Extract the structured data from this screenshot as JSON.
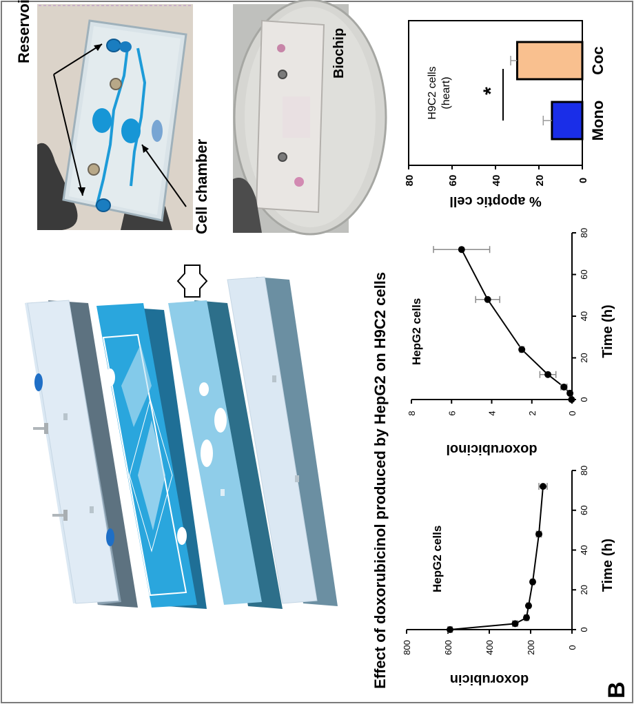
{
  "panel_label": "B",
  "photo_labels": {
    "reservoirs": "Reservoirs",
    "cell_chamber": "Cell chamber",
    "biochip": "Biochip"
  },
  "figure_title": "Effect of doxorubicinol produced by HepG2 on H9C2 cells",
  "chart_data": [
    {
      "type": "line",
      "annotation": "HepG2 cells",
      "xlabel": "Time (h)",
      "ylabel": "doxorubicin",
      "xlim": [
        0,
        80
      ],
      "ylim": [
        0,
        800
      ],
      "x_ticks": [
        "0",
        "20",
        "40",
        "60",
        "80"
      ],
      "y_ticks": [
        "0",
        "200",
        "400",
        "600",
        "800"
      ],
      "x": [
        0,
        3,
        6,
        12,
        24,
        48,
        72
      ],
      "y": [
        590,
        275,
        220,
        210,
        190,
        160,
        140
      ],
      "err": [
        10,
        12,
        10,
        8,
        8,
        12,
        20
      ]
    },
    {
      "type": "line",
      "annotation": "HepG2 cells",
      "xlabel": "Time (h)",
      "ylabel": "doxorubicinol",
      "xlim": [
        0,
        80
      ],
      "ylim": [
        0,
        8
      ],
      "x_ticks": [
        "0",
        "20",
        "40",
        "60",
        "80"
      ],
      "y_ticks": [
        "0",
        "2",
        "4",
        "6",
        "8"
      ],
      "x": [
        0,
        3,
        6,
        12,
        24,
        48,
        72
      ],
      "y": [
        0.02,
        0.1,
        0.4,
        1.2,
        2.5,
        4.2,
        5.5
      ],
      "err": [
        0,
        0.05,
        0.15,
        0.4,
        0.1,
        0.6,
        1.4
      ]
    },
    {
      "type": "bar",
      "annotation": "H9C2 cells\n(heart)",
      "ylabel": "% apoptic cell",
      "ylim": [
        0,
        80
      ],
      "y_ticks": [
        "0",
        "20",
        "40",
        "60",
        "80"
      ],
      "categories": [
        "Mono",
        "Coc"
      ],
      "values": [
        14,
        30
      ],
      "err": [
        4,
        3
      ],
      "colors": [
        "#1a2ee8",
        "#f9c08f"
      ],
      "significance": "*"
    }
  ]
}
